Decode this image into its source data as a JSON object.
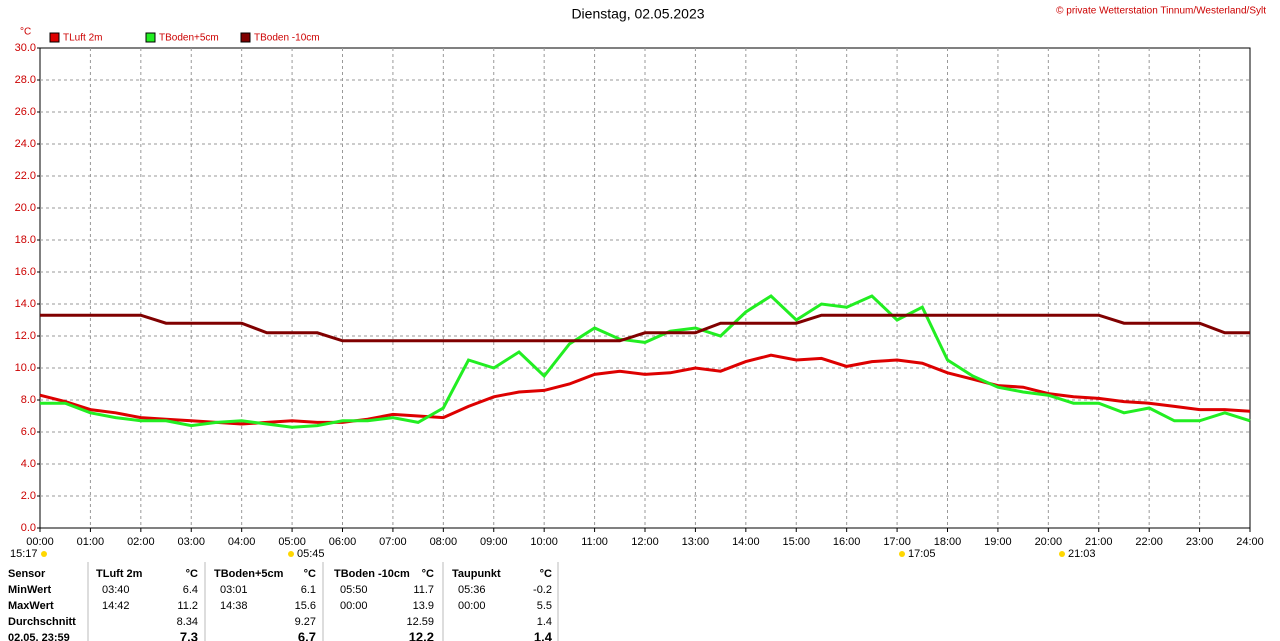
{
  "chart_data": {
    "type": "line",
    "title": "Dienstag, 02.05.2023",
    "copyright": "© private Wetterstation Tinnum/Westerland/Sylt",
    "y_unit": "°C",
    "x": [
      0,
      0.5,
      1,
      1.5,
      2,
      2.5,
      3,
      3.5,
      4,
      4.5,
      5,
      5.5,
      6,
      6.5,
      7,
      7.5,
      8,
      8.5,
      9,
      9.5,
      10,
      10.5,
      11,
      11.5,
      12,
      12.5,
      13,
      13.5,
      14,
      14.5,
      15,
      15.5,
      16,
      16.5,
      17,
      17.5,
      18,
      18.5,
      19,
      19.5,
      20,
      20.5,
      21,
      21.5,
      22,
      22.5,
      23,
      23.5,
      24
    ],
    "series": [
      {
        "name": "TLuft 2m",
        "color": "#dd0000",
        "values": [
          8.3,
          7.9,
          7.4,
          7.2,
          6.9,
          6.8,
          6.7,
          6.6,
          6.5,
          6.6,
          6.7,
          6.6,
          6.6,
          6.8,
          7.1,
          7.0,
          6.9,
          7.6,
          8.2,
          8.5,
          8.6,
          9.0,
          9.6,
          9.8,
          9.6,
          9.7,
          10.0,
          9.8,
          10.4,
          10.8,
          10.5,
          10.6,
          10.1,
          10.4,
          10.5,
          10.3,
          9.7,
          9.3,
          8.9,
          8.8,
          8.4,
          8.2,
          8.1,
          7.9,
          7.8,
          7.6,
          7.4,
          7.4,
          7.3
        ]
      },
      {
        "name": "TBoden+5cm",
        "color": "#22ee22",
        "values": [
          7.8,
          7.8,
          7.2,
          6.9,
          6.7,
          6.7,
          6.4,
          6.6,
          6.7,
          6.5,
          6.3,
          6.4,
          6.7,
          6.7,
          6.9,
          6.6,
          7.5,
          10.5,
          10.0,
          11.0,
          9.5,
          11.5,
          12.5,
          11.8,
          11.6,
          12.3,
          12.5,
          12.0,
          13.5,
          14.5,
          13.0,
          14.0,
          13.8,
          14.5,
          13.0,
          13.8,
          10.5,
          9.5,
          8.8,
          8.5,
          8.3,
          7.8,
          7.8,
          7.2,
          7.5,
          6.7,
          6.7,
          7.2,
          6.7
        ]
      },
      {
        "name": "TBoden -10cm",
        "color": "#800000",
        "values": [
          13.3,
          13.3,
          13.3,
          13.3,
          13.3,
          12.8,
          12.8,
          12.8,
          12.8,
          12.2,
          12.2,
          12.2,
          11.7,
          11.7,
          11.7,
          11.7,
          11.7,
          11.7,
          11.7,
          11.7,
          11.7,
          11.7,
          11.7,
          11.7,
          12.2,
          12.2,
          12.2,
          12.8,
          12.8,
          12.8,
          12.8,
          13.3,
          13.3,
          13.3,
          13.3,
          13.3,
          13.3,
          13.3,
          13.3,
          13.3,
          13.3,
          13.3,
          13.3,
          12.8,
          12.8,
          12.8,
          12.8,
          12.2,
          12.2
        ]
      }
    ],
    "xlim": [
      0,
      24
    ],
    "xticks": [
      {
        "value": 0,
        "label": "00:00"
      },
      {
        "value": 1,
        "label": "01:00"
      },
      {
        "value": 2,
        "label": "02:00"
      },
      {
        "value": 3,
        "label": "03:00"
      },
      {
        "value": 4,
        "label": "04:00"
      },
      {
        "value": 5,
        "label": "05:00"
      },
      {
        "value": 6,
        "label": "06:00"
      },
      {
        "value": 7,
        "label": "07:00"
      },
      {
        "value": 8,
        "label": "08:00"
      },
      {
        "value": 9,
        "label": "09:00"
      },
      {
        "value": 10,
        "label": "10:00"
      },
      {
        "value": 11,
        "label": "11:00"
      },
      {
        "value": 12,
        "label": "12:00"
      },
      {
        "value": 13,
        "label": "13:00"
      },
      {
        "value": 14,
        "label": "14:00"
      },
      {
        "value": 15,
        "label": "15:00"
      },
      {
        "value": 16,
        "label": "16:00"
      },
      {
        "value": 17,
        "label": "17:00"
      },
      {
        "value": 18,
        "label": "18:00"
      },
      {
        "value": 19,
        "label": "19:00"
      },
      {
        "value": 20,
        "label": "20:00"
      },
      {
        "value": 21,
        "label": "21:00"
      },
      {
        "value": 22,
        "label": "22:00"
      },
      {
        "value": 23,
        "label": "23:00"
      },
      {
        "value": 24,
        "label": "24:00"
      }
    ],
    "ylim": [
      0,
      30
    ],
    "yticks": [
      {
        "value": 0,
        "label": "0.0"
      },
      {
        "value": 2,
        "label": "2.0"
      },
      {
        "value": 4,
        "label": "4.0"
      },
      {
        "value": 6,
        "label": "6.0"
      },
      {
        "value": 8,
        "label": "8.0"
      },
      {
        "value": 10,
        "label": "10.0"
      },
      {
        "value": 12,
        "label": "12.0"
      },
      {
        "value": 14,
        "label": "14.0"
      },
      {
        "value": 16,
        "label": "16.0"
      },
      {
        "value": 18,
        "label": "18.0"
      },
      {
        "value": 20,
        "label": "20.0"
      },
      {
        "value": 22,
        "label": "22.0"
      },
      {
        "value": 24,
        "label": "24.0"
      },
      {
        "value": 26,
        "label": "26.0"
      },
      {
        "value": 28,
        "label": "28.0"
      },
      {
        "value": 30,
        "label": "30.0"
      }
    ],
    "grid": true,
    "sun_events": [
      "15:17",
      "05:45",
      "17:05",
      "21:03"
    ],
    "table": {
      "header": [
        "Sensor",
        "TLuft 2m",
        "°C",
        "TBoden+5cm",
        "°C",
        "TBoden -10cm",
        "°C",
        "Taupunkt",
        "°C"
      ],
      "rows": [
        [
          "MinWert",
          "03:40",
          "6.4",
          "03:01",
          "6.1",
          "05:50",
          "11.7",
          "05:36",
          "-0.2"
        ],
        [
          "MaxWert",
          "14:42",
          "11.2",
          "14:38",
          "15.6",
          "00:00",
          "13.9",
          "00:00",
          "5.5"
        ],
        [
          "Durchschnitt",
          "",
          "8.34",
          "",
          "9.27",
          "",
          "12.59",
          "",
          "1.4"
        ],
        [
          "02.05. 23:59",
          "",
          "7.3",
          "",
          "6.7",
          "",
          "12.2",
          "",
          "1.4"
        ]
      ]
    }
  }
}
